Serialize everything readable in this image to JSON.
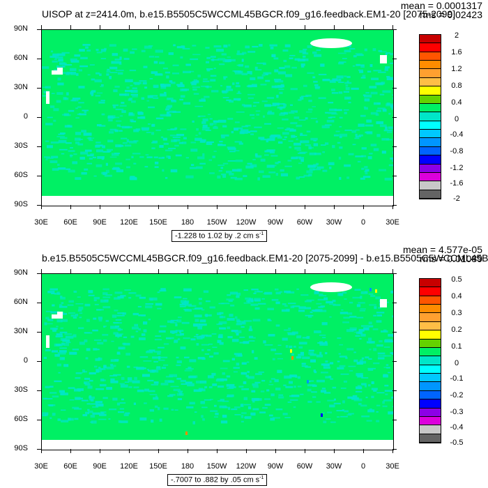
{
  "chart_data": [
    {
      "type": "heatmap",
      "title": "UISOP at z=2414.0m, b.e15.B5505C5WCCML45BGCR.f09_g16.feedback.EM1-20 [2075-2099]",
      "mean_label": "mean = 0.0001317",
      "rms_label": "rms = 0.02423",
      "range_label": "-1.228 to 1.02 by .2 cm s",
      "range_unit_exp": "-1",
      "y_ticks": [
        "90N",
        "60N",
        "30N",
        "0",
        "30S",
        "60S",
        "90S"
      ],
      "x_ticks": [
        "30E",
        "60E",
        "90E",
        "120E",
        "150E",
        "180",
        "150W",
        "120W",
        "90W",
        "60W",
        "30W",
        "0",
        "30E"
      ],
      "colorbar_labels": [
        "2",
        "1.6",
        "1.2",
        "0.8",
        "0.4",
        "0",
        "-0.4",
        "-0.8",
        "-1.2",
        "-1.6",
        "-2"
      ],
      "colorbar_colors": [
        "#c80000",
        "#ff0000",
        "#ff5500",
        "#ff8c00",
        "#ffa030",
        "#ffbe46",
        "#ffff00",
        "#64d200",
        "#00f064",
        "#00e6c8",
        "#00ffff",
        "#00c8ff",
        "#0096ff",
        "#0064ff",
        "#0000ff",
        "#8c00e6",
        "#dc00dc",
        "#c8c8c8",
        "#646464"
      ],
      "ylim": [
        -90,
        90
      ],
      "xlim": [
        30,
        390
      ]
    },
    {
      "type": "heatmap",
      "title": "b.e15.B5505C5WCCML45BGCR.f09_g16.feedback.EM1-20 [2075-2099] - b.e15.B5505C5WCCML45BG",
      "mean_label": "mean = 4.577e-05",
      "rms_label": "rms = 0.01089",
      "range_label": "-.7007 to .882 by .05 cm s",
      "range_unit_exp": "-1",
      "y_ticks": [
        "90N",
        "60N",
        "30N",
        "0",
        "30S",
        "60S",
        "90S"
      ],
      "x_ticks": [
        "30E",
        "60E",
        "90E",
        "120E",
        "150E",
        "180",
        "150W",
        "120W",
        "90W",
        "60W",
        "30W",
        "0",
        "30E"
      ],
      "colorbar_labels": [
        "0.5",
        "0.4",
        "0.3",
        "0.2",
        "0.1",
        "0",
        "-0.1",
        "-0.2",
        "-0.3",
        "-0.4",
        "-0.5"
      ],
      "colorbar_colors": [
        "#c80000",
        "#ff0000",
        "#ff5500",
        "#ff8c00",
        "#ffa030",
        "#ffbe46",
        "#ffff00",
        "#64d200",
        "#00f064",
        "#00e6c8",
        "#00ffff",
        "#00c8ff",
        "#0096ff",
        "#0064ff",
        "#0000ff",
        "#8c00e6",
        "#dc00dc",
        "#c8c8c8",
        "#646464"
      ],
      "ylim": [
        -90,
        90
      ],
      "xlim": [
        30,
        390
      ]
    }
  ],
  "field_colors": {
    "ocean": "#00f064",
    "noise": "#00e6c8",
    "missing": "#ffffff"
  }
}
